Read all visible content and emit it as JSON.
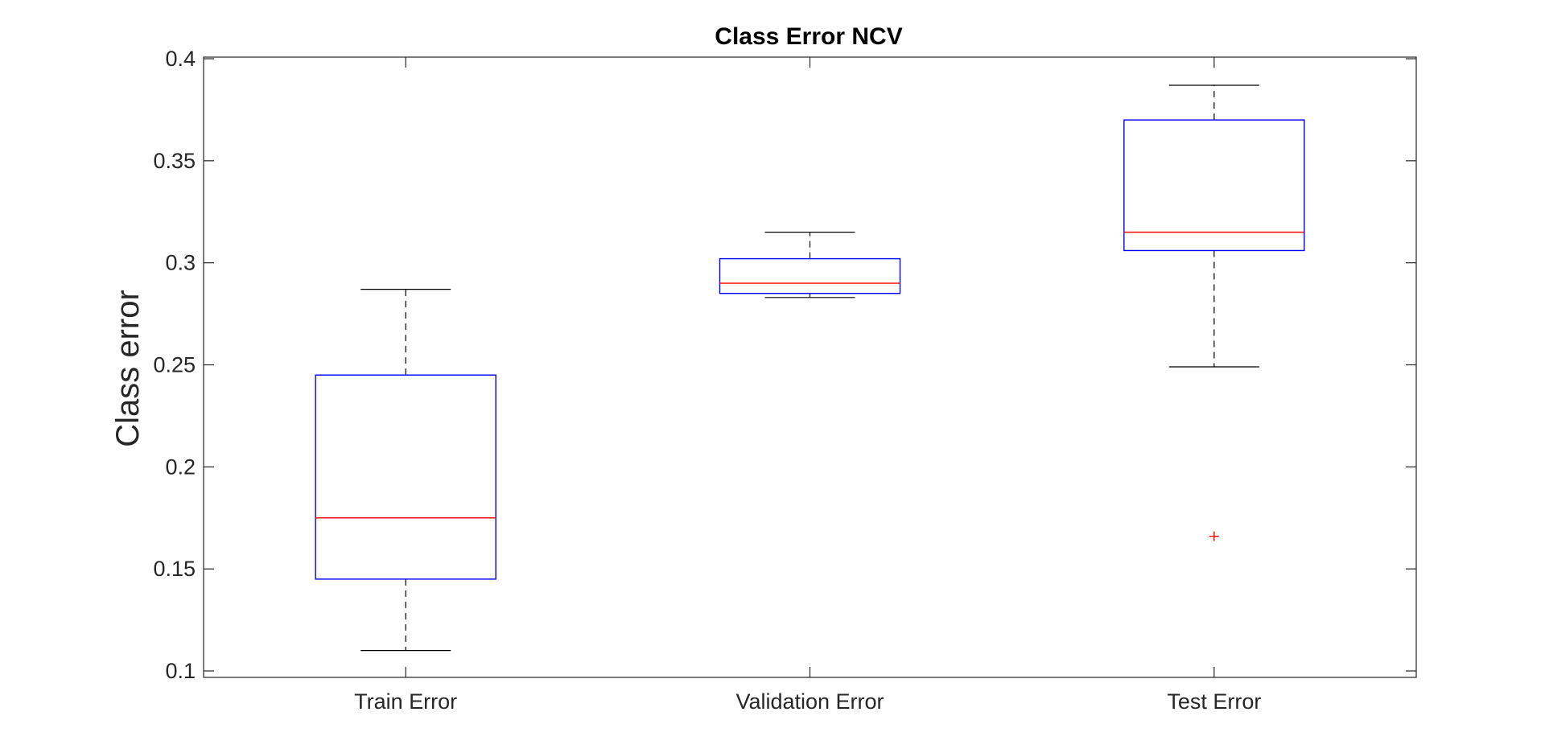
{
  "chart_data": {
    "type": "boxplot",
    "title": "Class Error NCV",
    "xlabel": "",
    "ylabel": "Class error",
    "ylim": [
      0.1,
      0.4
    ],
    "yticks": [
      0.1,
      0.15,
      0.2,
      0.25,
      0.3,
      0.35,
      0.4
    ],
    "ytick_labels": [
      "0.1",
      "0.15",
      "0.2",
      "0.25",
      "0.3",
      "0.35",
      "0.4"
    ],
    "categories": [
      "Train Error",
      "Validation Error",
      "Test Error"
    ],
    "series": [
      {
        "category": "Train Error",
        "whisker_low": 0.11,
        "q1": 0.145,
        "median": 0.175,
        "q3": 0.245,
        "whisker_high": 0.287,
        "outliers": []
      },
      {
        "category": "Validation Error",
        "whisker_low": 0.283,
        "q1": 0.285,
        "median": 0.29,
        "q3": 0.302,
        "whisker_high": 0.315,
        "outliers": []
      },
      {
        "category": "Test Error",
        "whisker_low": 0.249,
        "q1": 0.306,
        "median": 0.315,
        "q3": 0.37,
        "whisker_high": 0.387,
        "outliers": [
          0.166
        ]
      }
    ],
    "grid": false,
    "colors": {
      "box": "#0000ff",
      "median": "#ff0000",
      "whisker": "#000000",
      "outlier": "#ff0000",
      "axes": "#262626"
    }
  }
}
